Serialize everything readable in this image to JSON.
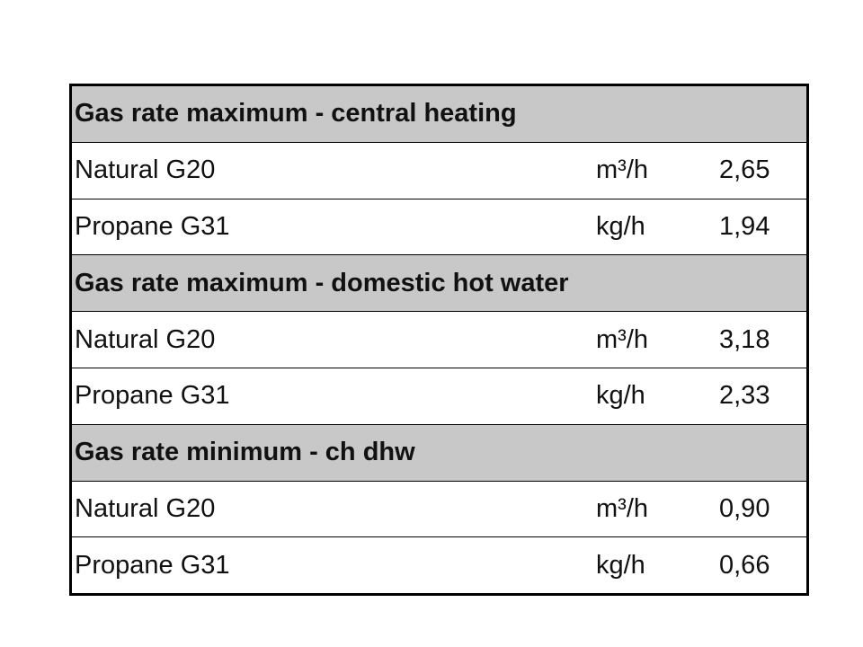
{
  "table": {
    "sections": [
      {
        "title": "Gas rate maximum - central heating",
        "rows": [
          [
            "Natural G20",
            "m³/h",
            "2,65"
          ],
          [
            "Propane G31",
            "kg/h",
            "1,94"
          ]
        ]
      },
      {
        "title": "Gas rate maximum - domestic hot water",
        "rows": [
          [
            "Natural G20",
            "m³/h",
            "3,18"
          ],
          [
            "Propane G31",
            "kg/h",
            "2,33"
          ]
        ]
      },
      {
        "title": "Gas rate minimum - ch dhw",
        "rows": [
          [
            "Natural G20",
            "m³/h",
            "0,90"
          ],
          [
            "Propane G31",
            "kg/h",
            "0,66"
          ]
        ]
      }
    ]
  }
}
